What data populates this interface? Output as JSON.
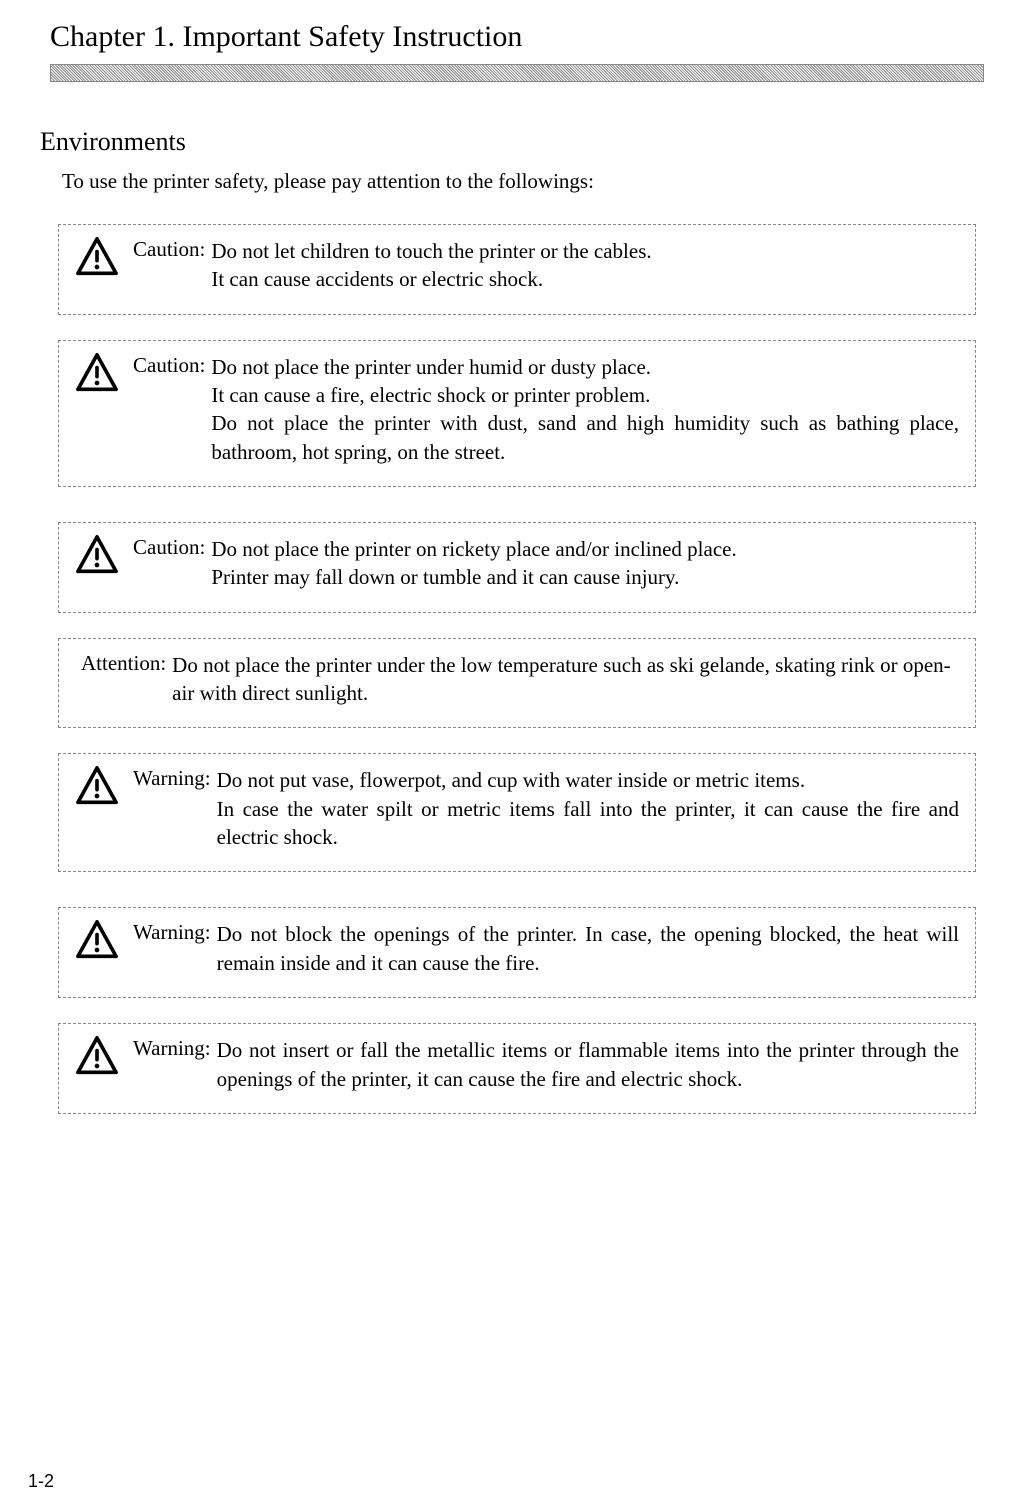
{
  "chapter_title": "Chapter 1. Important Safety Instruction",
  "section_heading": "Environments",
  "intro_text": "To use the printer safety, please pay attention to the followings:",
  "labels": {
    "caution": "Caution:",
    "attention": "Attention:",
    "warning": "Warning:"
  },
  "boxes": [
    {
      "label_key": "caution",
      "has_icon": true,
      "justify": false,
      "text": "Do not let children to touch the printer or the cables.\nIt can cause accidents or electric shock."
    },
    {
      "label_key": "caution",
      "has_icon": true,
      "justify": true,
      "text": "Do not place the printer under humid or dusty place.\nIt can cause a fire, electric shock or printer problem.\nDo not place the printer with dust, sand and high humidity such as bathing place, bathroom, hot spring, on the street."
    },
    {
      "label_key": "caution",
      "has_icon": true,
      "justify": false,
      "text": "Do not place the printer on rickety place and/or inclined place.\nPrinter may fall down or tumble and it can cause injury."
    },
    {
      "label_key": "attention",
      "has_icon": false,
      "justify": false,
      "text": "Do not place the printer under the low temperature such as ski gelande, skating rink or open-air with direct sunlight."
    },
    {
      "label_key": "warning",
      "has_icon": true,
      "justify": true,
      "text": "Do not put vase, flowerpot, and cup with water inside or metric items.\nIn case the water spilt or metric items fall into the printer, it can cause the fire and electric shock."
    },
    {
      "label_key": "warning",
      "has_icon": true,
      "justify": true,
      "text": "Do not block the openings of the printer.  In case, the opening blocked, the heat will remain inside and it can cause the fire."
    },
    {
      "label_key": "warning",
      "has_icon": true,
      "justify": true,
      "text": "Do not insert or fall the metallic items or flammable items into the printer through the openings of the printer, it can cause the fire and electric shock."
    }
  ],
  "page_number": "1-2",
  "colors": {
    "text": "#000000",
    "background": "#ffffff",
    "border": "#888888"
  }
}
